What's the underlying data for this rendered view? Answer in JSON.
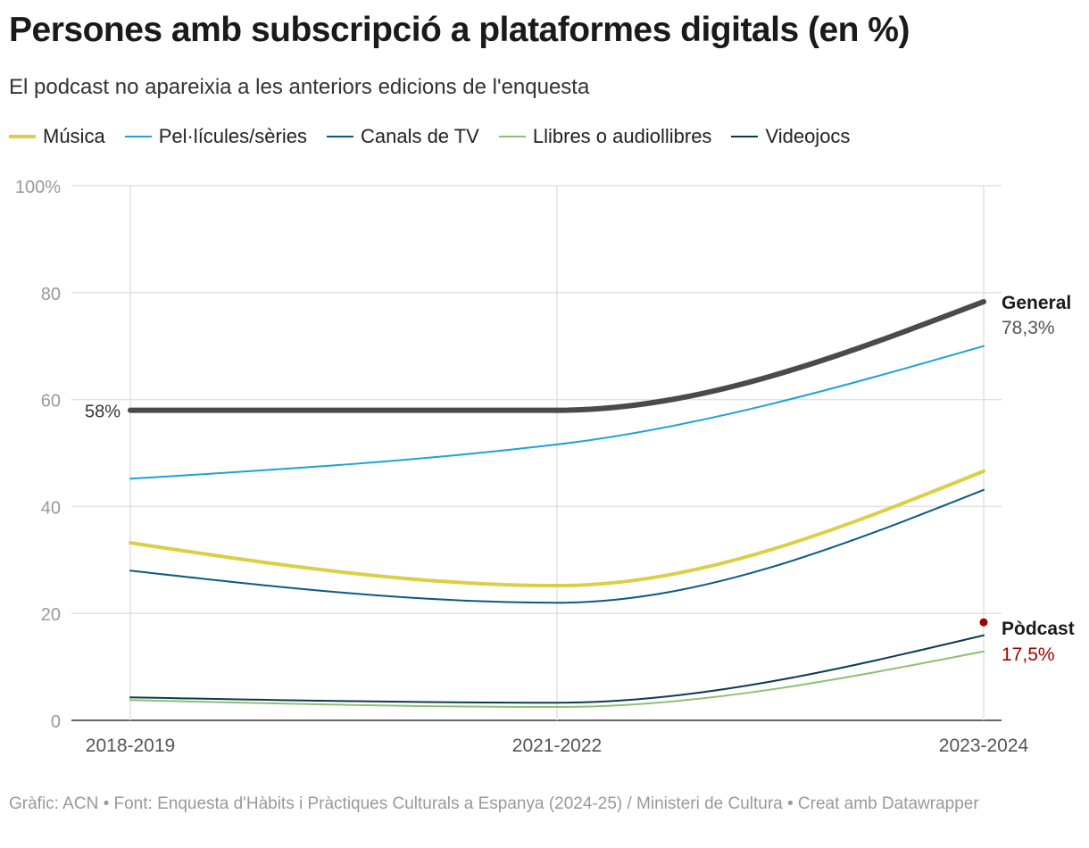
{
  "title": "Persones amb subscripció a plataformes digitals (en %)",
  "subtitle": "El podcast no apareixia a les anteriors edicions de l'enquesta",
  "footer": "Gràfic: ACN • Font: Enquesta d'Hàbits i Pràctiques Culturals a Espanya (2024-25) / Ministeri de Cultura • Creat amb Datawrapper",
  "chart_data": {
    "type": "line",
    "x": [
      "2018-2019",
      "2021-2022",
      "2023-2024"
    ],
    "ylim": [
      0,
      100
    ],
    "yticks": [
      0,
      20,
      40,
      60,
      80,
      100
    ],
    "ytick_labels": [
      "0",
      "20",
      "40",
      "60",
      "80",
      "100%"
    ],
    "grid": true,
    "legend_position": "top",
    "series": [
      {
        "name": "Música",
        "color": "#dacf45",
        "values": [
          33.2,
          25.2,
          46.6
        ],
        "width": 4,
        "legend": true
      },
      {
        "name": "Pel·lícules/sèries",
        "color": "#1ba3d6",
        "values": [
          45.2,
          51.6,
          70.0
        ],
        "width": 2,
        "legend": true
      },
      {
        "name": "Canals de TV",
        "color": "#0b5a82",
        "values": [
          28.0,
          22.0,
          43.1
        ],
        "width": 2,
        "legend": true
      },
      {
        "name": "Llibres o audiollibres",
        "color": "#8cc072",
        "values": [
          3.8,
          2.5,
          12.9
        ],
        "width": 2,
        "legend": true
      },
      {
        "name": "Videojocs",
        "color": "#0c3a4f",
        "values": [
          4.3,
          3.3,
          15.9
        ],
        "width": 2,
        "legend": true
      },
      {
        "name": "General",
        "color": "#4a4a4a",
        "values": [
          58,
          58,
          78.3
        ],
        "width": 6,
        "legend": false
      }
    ],
    "points": [
      {
        "name": "Pòdcast",
        "color": "#a00000",
        "x": "2023-2024",
        "value": 17.5
      }
    ],
    "annotations": {
      "general_start": "58%",
      "general_label": "General",
      "general_value": "78,3%",
      "podcast_label": "Pòdcast",
      "podcast_value": "17,5%"
    }
  }
}
